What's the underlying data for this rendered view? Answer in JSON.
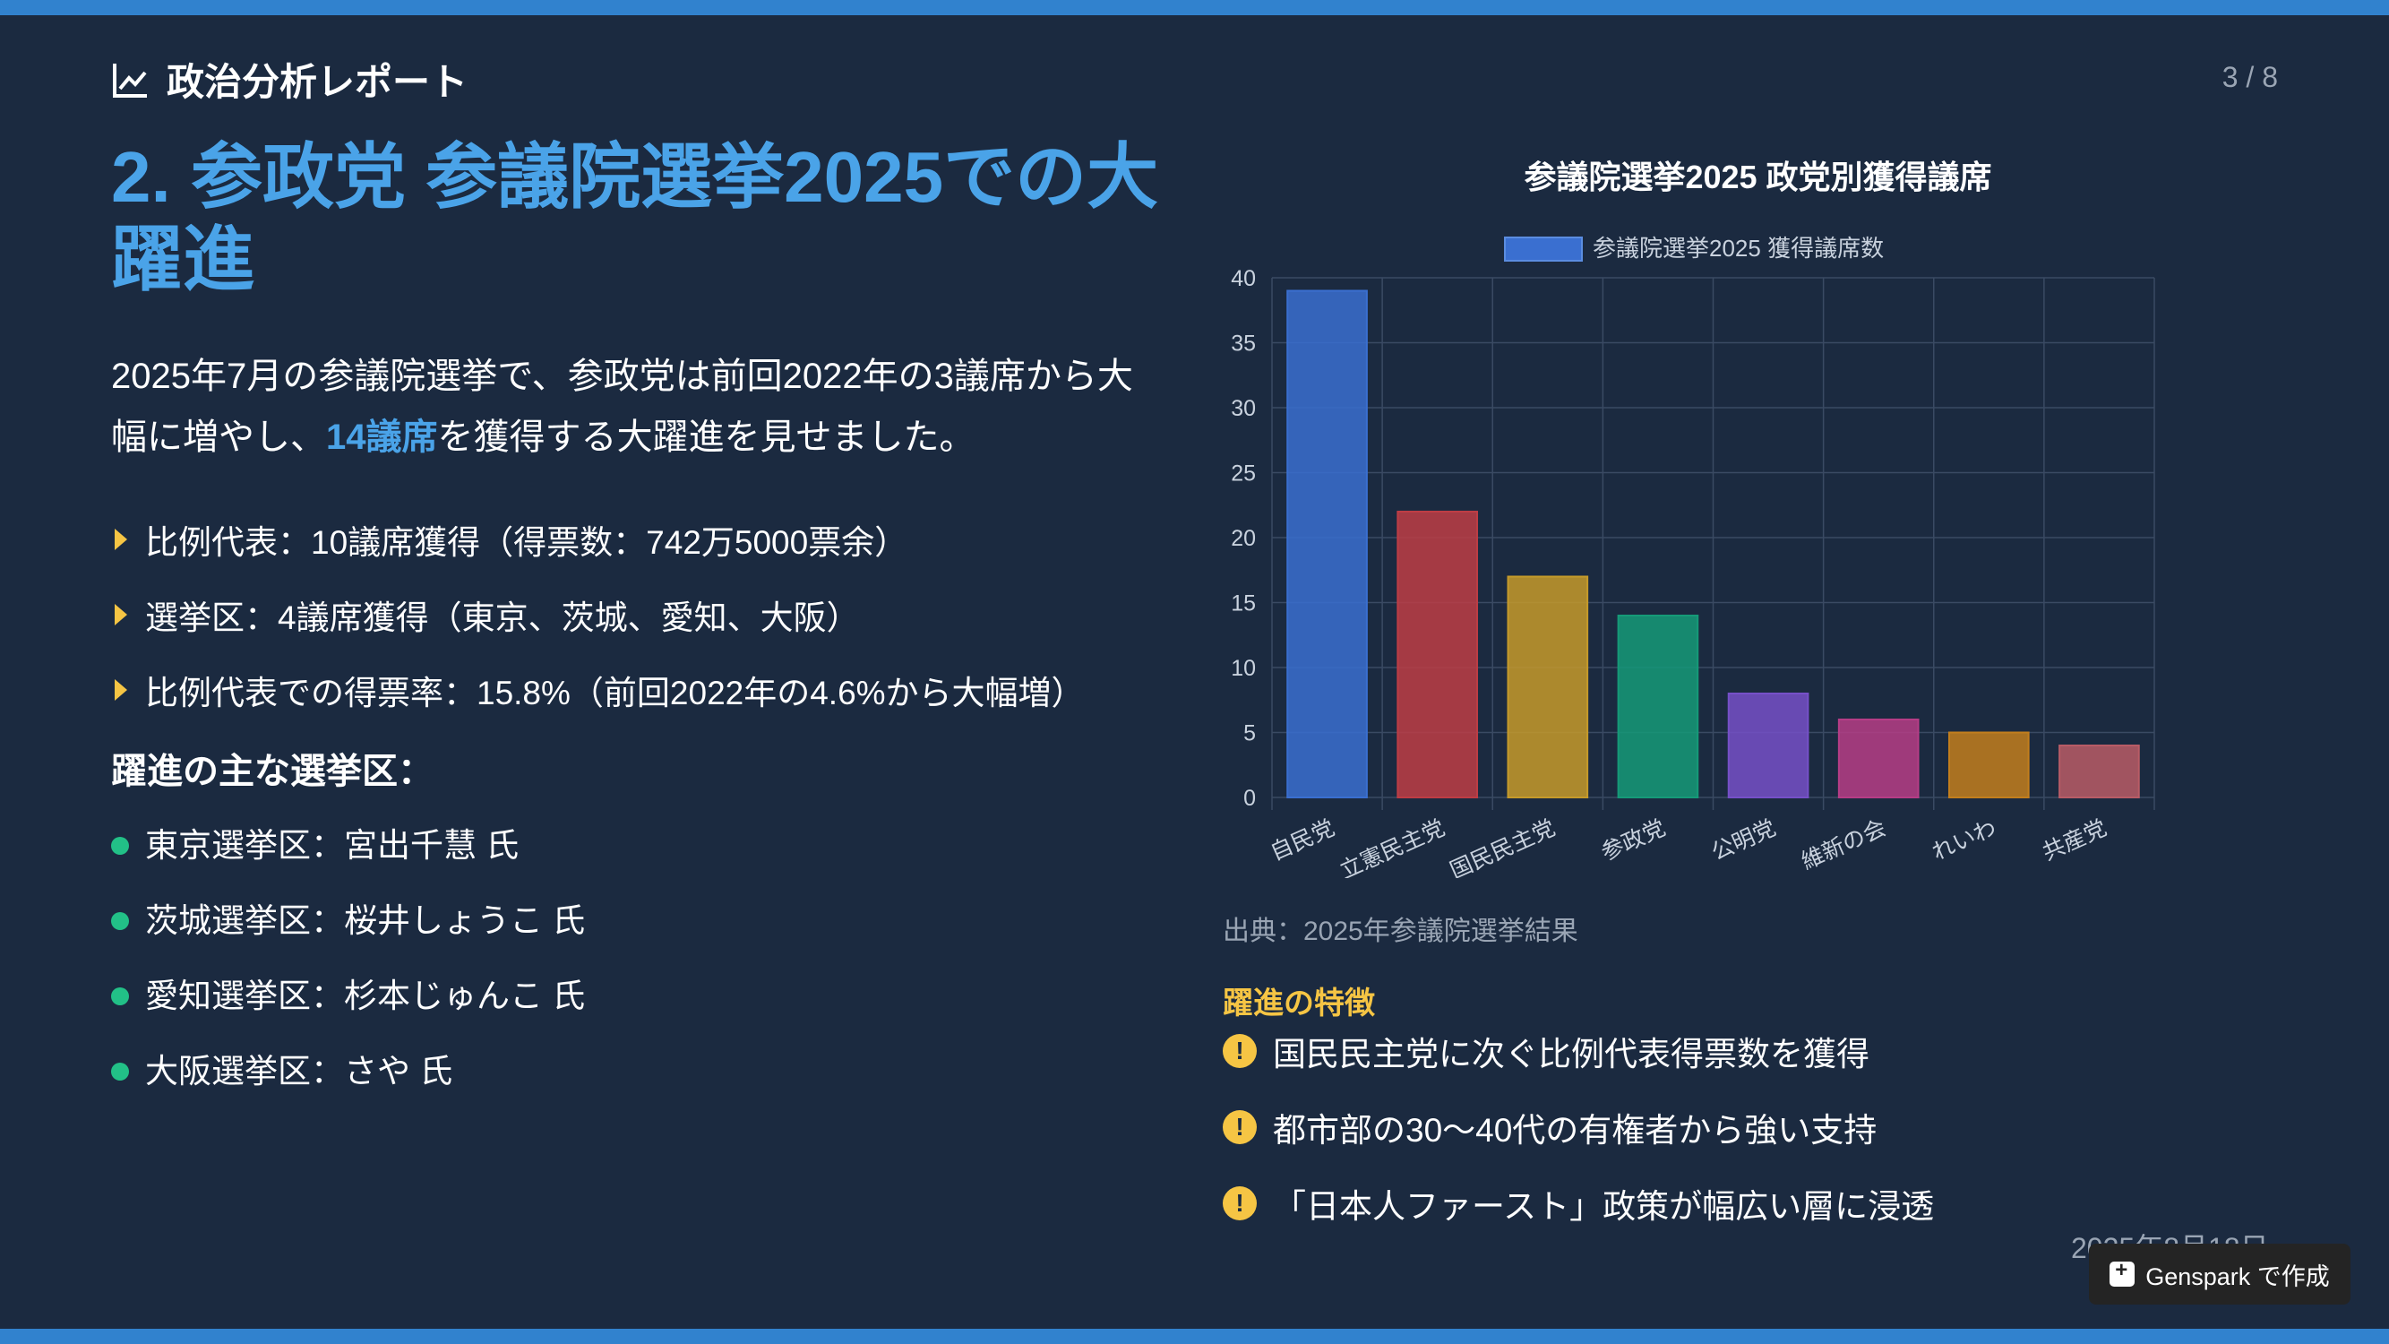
{
  "header": {
    "title": "政治分析レポート",
    "page": "3 / 8"
  },
  "main": {
    "heading": "2. 参政党 参議院選挙2025での大躍進",
    "intro_pre": "2025年7月の参議院選挙で、参政党は前回2022年の3議席から大幅に増やし、",
    "intro_hl": "14議席",
    "intro_post": "を獲得する大躍進を見せました。",
    "bullets": [
      "比例代表：10議席獲得（得票数：742万5000票余）",
      "選挙区：4議席獲得（東京、茨城、愛知、大阪）",
      "比例代表での得票率：15.8%（前回2022年の4.6%から大幅増）"
    ],
    "subheading": "躍進の主な選挙区：",
    "districts": [
      "東京選挙区：宮出千慧 氏",
      "茨城選挙区：桜井しょうこ 氏",
      "愛知選挙区：杉本じゅんこ 氏",
      "大阪選挙区：さや 氏"
    ]
  },
  "chart_data": {
    "type": "bar",
    "title": "参議院選挙2025 政党別獲得議席",
    "categories": [
      "自民党",
      "立憲民主党",
      "国民民主党",
      "参政党",
      "公明党",
      "維新の会",
      "れいわ",
      "共産党"
    ],
    "series": [
      {
        "name": "参議院選挙2025 獲得議席数",
        "values": [
          39,
          22,
          17,
          14,
          8,
          6,
          5,
          4
        ]
      }
    ],
    "colors": [
      "#3a6fd0",
      "#bd3d45",
      "#c59a2a",
      "#159a78",
      "#7650c8",
      "#b63d86",
      "#c27e1d",
      "#b85c66"
    ],
    "legend_color": "#3a6fd0",
    "ylim": [
      0,
      40
    ],
    "yticks": [
      0,
      5,
      10,
      15,
      20,
      25,
      30,
      35,
      40
    ],
    "grid": true,
    "legend_position": "top"
  },
  "side": {
    "source": "出典：2025年参議院選挙結果",
    "features_title": "躍進の特徴",
    "features": [
      "国民民主党に次ぐ比例代表得票数を獲得",
      "都市部の30〜40代の有権者から強い支持",
      "「日本人ファースト」政策が幅広い層に浸透"
    ]
  },
  "footer": {
    "date": "2025年8月18日",
    "badge": "Genspark で作成"
  }
}
